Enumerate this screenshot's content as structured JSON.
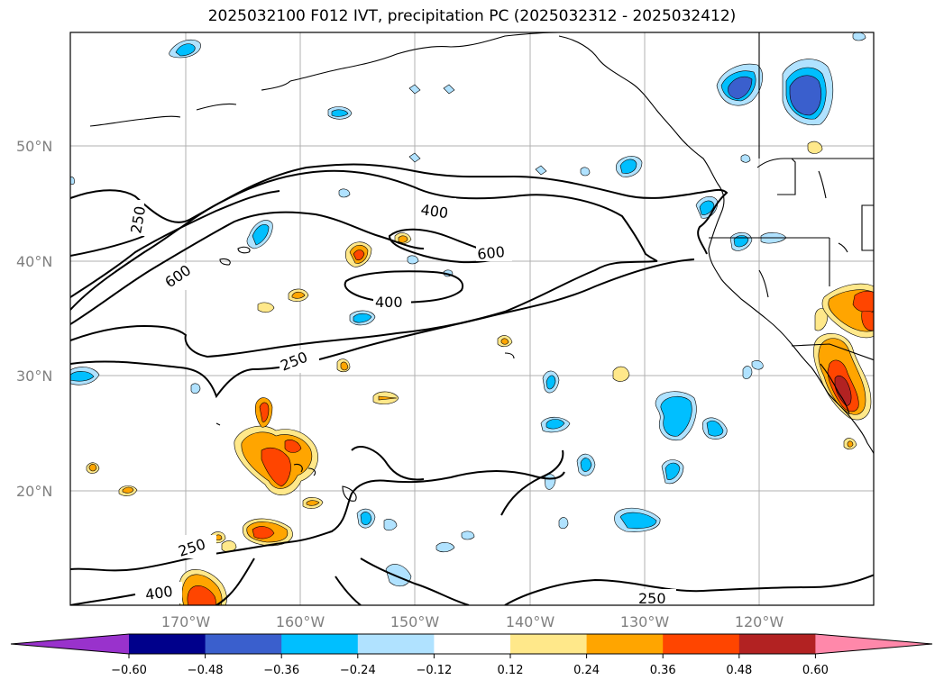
{
  "title": "2025032100 F012 IVT, precipitation PC (2025032312 - 2025032412)",
  "lat_labels": [
    "50°N",
    "40°N",
    "30°N",
    "20°N"
  ],
  "lon_labels": [
    "170°W",
    "160°W",
    "150°W",
    "140°W",
    "130°W",
    "120°W"
  ],
  "contour_labels": [
    "250",
    "400",
    "600",
    "600",
    "400",
    "250",
    "250",
    "400",
    "250"
  ],
  "colorbar": {
    "ticks": [
      "−0.60",
      "−0.48",
      "−0.36",
      "−0.24",
      "−0.12",
      "0.12",
      "0.24",
      "0.36",
      "0.48",
      "0.60"
    ],
    "colors": [
      "#9932cc",
      "#00008b",
      "#3a5fcd",
      "#00bfff",
      "#b0e2ff",
      "#ffffff",
      "#ffe88a",
      "#ffa500",
      "#ff4500",
      "#b22222",
      "#ff88aa"
    ]
  }
}
